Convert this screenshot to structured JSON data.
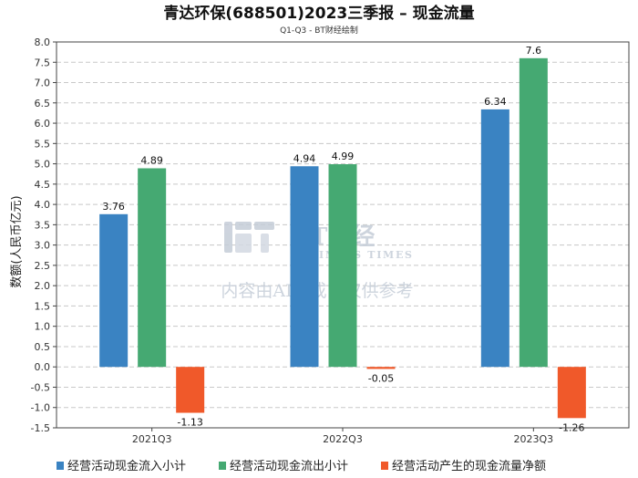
{
  "chart_data": {
    "type": "bar",
    "title": "青达环保(688501)2023三季报 – 现金流量",
    "subtitle": "Q1-Q3 - BT财经绘制",
    "xlabel": "",
    "ylabel": "数额(人民币亿元)",
    "ylim": [
      -1.5,
      8.0
    ],
    "ytick_step": 0.5,
    "grid": true,
    "legend_position": "bottom",
    "categories": [
      "2021Q3",
      "2022Q3",
      "2023Q3"
    ],
    "series": [
      {
        "name": "经营活动现金流入小计",
        "color": "#3a83c2",
        "values": [
          3.76,
          4.94,
          6.34
        ],
        "labels": [
          "3.76",
          "4.94",
          "6.34"
        ]
      },
      {
        "name": "经营活动现金流出小计",
        "color": "#45a972",
        "values": [
          4.89,
          4.99,
          7.6
        ],
        "labels": [
          "4.89",
          "4.99",
          "7.6"
        ]
      },
      {
        "name": "经营活动产生的现金流量净额",
        "color": "#f0592a",
        "values": [
          -1.13,
          -0.05,
          -1.26
        ],
        "labels": [
          "-1.13",
          "-0.05",
          "-1.26"
        ]
      }
    ]
  },
  "watermark": {
    "brand": "BT财经",
    "brand_sub": "BUSINESS TIMES",
    "notice": "内容由AI生成，仅供参考"
  }
}
